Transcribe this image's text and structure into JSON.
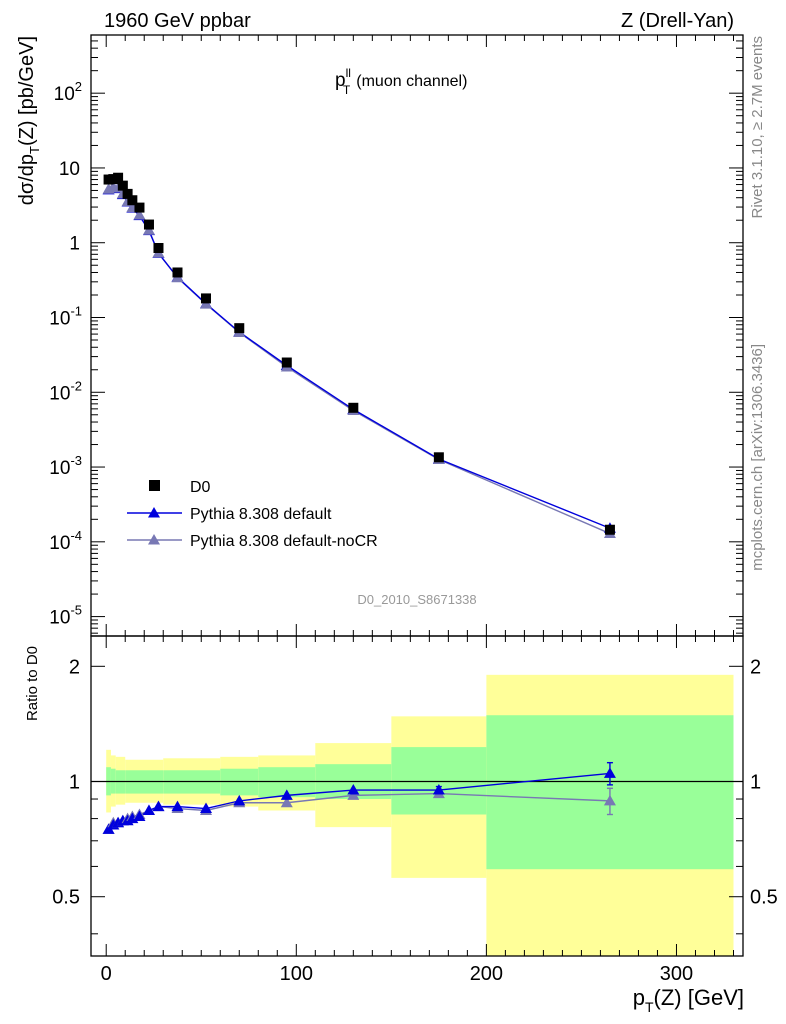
{
  "header": {
    "left": "1960 GeV ppbar",
    "right": "Z (Drell-Yan)"
  },
  "side_labels": {
    "rivet": "Rivet 3.1.10, ≥ 2.7M events",
    "mcplots": "mcplots.cern.ch [arXiv:1306.3436]"
  },
  "analysis_id": "D0_2010_S8671338",
  "panel_title": {
    "main": "p",
    "sup": "ll",
    "sub": "T",
    "suffix": "(muon channel)"
  },
  "axes": {
    "top_ylabel": "dσ/dp_T(Z) [pb/GeV]",
    "ratio_ylabel": "Ratio to D0",
    "xlabel": "p_T(Z) [GeV]",
    "x_ticks": [
      0,
      100,
      200,
      300
    ],
    "ratio_ticks": [
      "0.5",
      "1",
      "2"
    ],
    "log_ticks": [
      {
        "base": "10",
        "exp": "-5",
        "value": 1e-05
      },
      {
        "base": "10",
        "exp": "-4",
        "value": 0.0001
      },
      {
        "base": "10",
        "exp": "-3",
        "value": 0.001
      },
      {
        "base": "10",
        "exp": "-2",
        "value": 0.01
      },
      {
        "base": "10",
        "exp": "-1",
        "value": 0.1
      },
      {
        "base": "1",
        "exp": "",
        "value": 1
      },
      {
        "base": "10",
        "exp": "",
        "value": 10
      },
      {
        "base": "10",
        "exp": "2",
        "value": 100
      }
    ]
  },
  "legend": [
    {
      "label": "D0",
      "marker": "square",
      "color": "#000000"
    },
    {
      "label": "Pythia 8.308 default",
      "marker": "triangle",
      "color": "#0000dd"
    },
    {
      "label": "Pythia 8.308 default-noCR",
      "marker": "triangle",
      "color": "#7878b4"
    }
  ],
  "colors": {
    "data": "#000000",
    "default": "#0000dd",
    "nocr": "#7878b4",
    "band_inner": "#99ff99",
    "band_outer": "#ffff99"
  },
  "chart_data": {
    "type": "scatter",
    "x_range": [
      -8,
      335
    ],
    "top_ylim": [
      5.5e-06,
      600
    ],
    "top_yscale": "log",
    "ratio_ylim": [
      0.35,
      2.4
    ],
    "ratio_yscale": "log",
    "bins": [
      {
        "lo": 0,
        "hi": 2.5,
        "x": 1.25,
        "data": 7.0,
        "default": 5.1,
        "nocr": 5.2
      },
      {
        "lo": 2.5,
        "hi": 5,
        "x": 3.75,
        "data": 7.1,
        "default": 5.5,
        "nocr": 5.6
      },
      {
        "lo": 5,
        "hi": 7.5,
        "x": 6.25,
        "data": 7.4,
        "default": 5.3,
        "nocr": 5.4
      },
      {
        "lo": 7.5,
        "hi": 10,
        "x": 8.75,
        "data": 5.8,
        "default": 4.4,
        "nocr": 4.5
      },
      {
        "lo": 10,
        "hi": 12.5,
        "x": 11.25,
        "data": 4.5,
        "default": 3.5,
        "nocr": 3.55
      },
      {
        "lo": 12.5,
        "hi": 15,
        "x": 13.75,
        "data": 3.7,
        "default": 2.9,
        "nocr": 2.95
      },
      {
        "lo": 15,
        "hi": 20,
        "x": 17.5,
        "data": 2.95,
        "default": 2.3,
        "nocr": 2.35
      },
      {
        "lo": 20,
        "hi": 25,
        "x": 22.5,
        "data": 1.75,
        "default": 1.45,
        "nocr": 1.47
      },
      {
        "lo": 25,
        "hi": 30,
        "x": 27.5,
        "data": 0.85,
        "default": 0.72,
        "nocr": 0.73
      },
      {
        "lo": 30,
        "hi": 45,
        "x": 37.5,
        "data": 0.4,
        "default": 0.345,
        "nocr": 0.34
      },
      {
        "lo": 45,
        "hi": 60,
        "x": 52.5,
        "data": 0.18,
        "default": 0.153,
        "nocr": 0.151
      },
      {
        "lo": 60,
        "hi": 80,
        "x": 70,
        "data": 0.072,
        "default": 0.064,
        "nocr": 0.063
      },
      {
        "lo": 80,
        "hi": 110,
        "x": 95,
        "data": 0.025,
        "default": 0.0228,
        "nocr": 0.0218
      },
      {
        "lo": 110,
        "hi": 150,
        "x": 130,
        "data": 0.0062,
        "default": 0.0059,
        "nocr": 0.0057
      },
      {
        "lo": 150,
        "hi": 200,
        "x": 175,
        "data": 0.00135,
        "default": 0.00128,
        "nocr": 0.00126
      },
      {
        "lo": 200,
        "hi": 330,
        "x": 265,
        "data": 0.000145,
        "default": 0.000152,
        "nocr": 0.000129
      }
    ],
    "ratio": {
      "default": [
        0.75,
        0.77,
        0.78,
        0.79,
        0.79,
        0.8,
        0.81,
        0.84,
        0.86,
        0.86,
        0.85,
        0.89,
        0.92,
        0.95,
        0.95,
        1.05
      ],
      "nocr": [
        0.75,
        0.78,
        0.78,
        0.79,
        0.8,
        0.81,
        0.82,
        0.84,
        0.86,
        0.85,
        0.84,
        0.88,
        0.88,
        0.92,
        0.93,
        0.89
      ],
      "default_err": [
        0,
        0,
        0,
        0,
        0,
        0,
        0,
        0,
        0,
        0,
        0,
        0,
        0,
        0,
        0.02,
        0.07
      ],
      "nocr_err": [
        0,
        0,
        0,
        0,
        0,
        0,
        0,
        0,
        0,
        0,
        0,
        0,
        0,
        0,
        0.02,
        0.07
      ]
    },
    "bands": [
      {
        "lo": 0,
        "hi": 2.5,
        "inner": [
          0.92,
          1.09
        ],
        "outer": [
          0.83,
          1.21
        ]
      },
      {
        "lo": 2.5,
        "hi": 5,
        "inner": [
          0.93,
          1.08
        ],
        "outer": [
          0.86,
          1.17
        ]
      },
      {
        "lo": 5,
        "hi": 10,
        "inner": [
          0.93,
          1.07
        ],
        "outer": [
          0.87,
          1.16
        ]
      },
      {
        "lo": 10,
        "hi": 30,
        "inner": [
          0.93,
          1.07
        ],
        "outer": [
          0.88,
          1.14
        ]
      },
      {
        "lo": 30,
        "hi": 60,
        "inner": [
          0.93,
          1.07
        ],
        "outer": [
          0.87,
          1.15
        ]
      },
      {
        "lo": 60,
        "hi": 80,
        "inner": [
          0.92,
          1.08
        ],
        "outer": [
          0.86,
          1.16
        ]
      },
      {
        "lo": 80,
        "hi": 110,
        "inner": [
          0.91,
          1.09
        ],
        "outer": [
          0.84,
          1.17
        ]
      },
      {
        "lo": 110,
        "hi": 150,
        "inner": [
          0.9,
          1.11
        ],
        "outer": [
          0.76,
          1.26
        ]
      },
      {
        "lo": 150,
        "hi": 200,
        "inner": [
          0.82,
          1.23
        ],
        "outer": [
          0.56,
          1.48
        ]
      },
      {
        "lo": 200,
        "hi": 330,
        "inner": [
          0.59,
          1.49
        ],
        "outer": [
          0.33,
          1.9
        ]
      }
    ]
  }
}
